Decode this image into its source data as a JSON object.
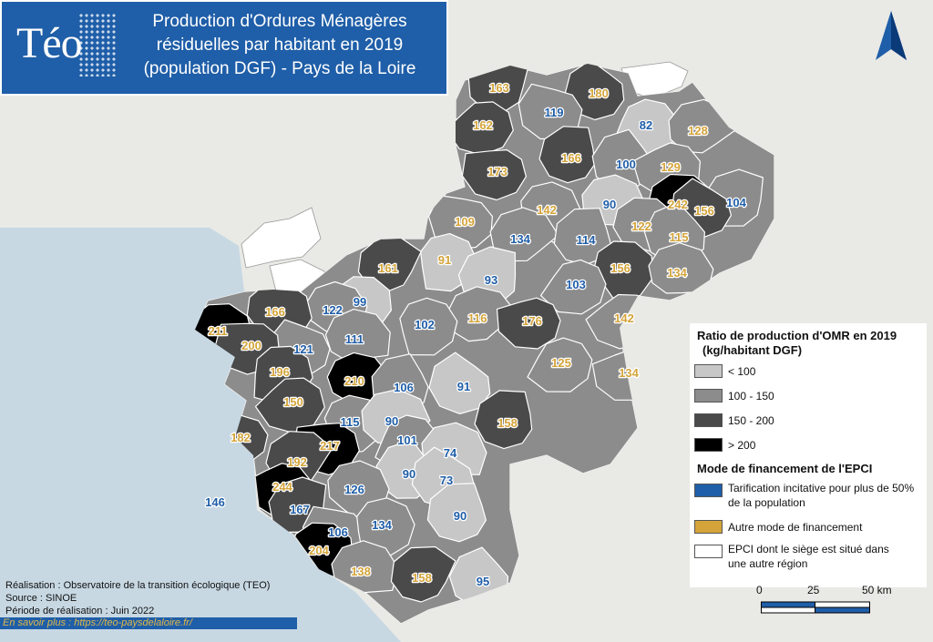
{
  "header": {
    "logo": "Téo",
    "title_lines": [
      "Production d'Ordures Ménagères",
      "résiduelles par habitant en 2019",
      "(population DGF) - Pays de la Loire"
    ]
  },
  "colors": {
    "lt100": "#c7c7c7",
    "r100_150": "#8c8c8c",
    "r150_200": "#4a4a4a",
    "gt200": "#000000",
    "incitative": "#1f5ea8",
    "autre": "#d4a43a",
    "other_region": "#ffffff",
    "sea": "#c7d8e3",
    "land": "#e9e9e6"
  },
  "legend": {
    "title": "Ratio de production d'OMR en 2019",
    "subtitle": "(kg/habitant DGF)",
    "classes": [
      "< 100",
      "100 - 150",
      "150 - 200",
      "> 200"
    ],
    "finance_title": "Mode de financement de l'EPCI",
    "finance_items": [
      "Tarification incitative pour plus de 50% de la population",
      "Autre mode de financement",
      "EPCI dont le siège est situé dans une autre région"
    ]
  },
  "scale": {
    "labels": [
      "0",
      "25",
      "50 km"
    ]
  },
  "credits": {
    "line1": "Réalisation : Observatoire de la transition écologique (TEO)",
    "line2": "Source : SINOE",
    "line3": "Période de réalisation : Juin 2022",
    "link": "En savoir plus : https://teo-paysdelaloire.fr/"
  },
  "epci": [
    {
      "v": "163",
      "m": "autre"
    },
    {
      "v": "180",
      "m": "autre"
    },
    {
      "v": "119",
      "m": "incitative"
    },
    {
      "v": "162",
      "m": "autre"
    },
    {
      "v": "82",
      "m": "incitative"
    },
    {
      "v": "128",
      "m": "autre"
    },
    {
      "v": "166",
      "m": "autre"
    },
    {
      "v": "100",
      "m": "incitative"
    },
    {
      "v": "173",
      "m": "autre"
    },
    {
      "v": "129",
      "m": "autre"
    },
    {
      "v": "90",
      "m": "incitative"
    },
    {
      "v": "242",
      "m": "autre"
    },
    {
      "v": "104",
      "m": "incitative"
    },
    {
      "v": "156",
      "m": "autre"
    },
    {
      "v": "109",
      "m": "autre"
    },
    {
      "v": "142",
      "m": "autre"
    },
    {
      "v": "122",
      "m": "autre"
    },
    {
      "v": "134",
      "m": "incitative"
    },
    {
      "v": "114",
      "m": "incitative"
    },
    {
      "v": "115",
      "m": "autre"
    },
    {
      "v": "91",
      "m": "autre"
    },
    {
      "v": "156",
      "m": "autre"
    },
    {
      "v": "134",
      "m": "autre"
    },
    {
      "v": "161",
      "m": "autre"
    },
    {
      "v": "93",
      "m": "incitative"
    },
    {
      "v": "103",
      "m": "incitative"
    },
    {
      "v": "99",
      "m": "incitative"
    },
    {
      "v": "122",
      "m": "incitative"
    },
    {
      "v": "166",
      "m": "autre"
    },
    {
      "v": "116",
      "m": "autre"
    },
    {
      "v": "176",
      "m": "autre"
    },
    {
      "v": "142",
      "m": "autre"
    },
    {
      "v": "102",
      "m": "incitative"
    },
    {
      "v": "211",
      "m": "autre"
    },
    {
      "v": "111",
      "m": "incitative"
    },
    {
      "v": "121",
      "m": "incitative"
    },
    {
      "v": "200",
      "m": "autre"
    },
    {
      "v": "125",
      "m": "autre"
    },
    {
      "v": "196",
      "m": "autre"
    },
    {
      "v": "210",
      "m": "autre"
    },
    {
      "v": "106",
      "m": "incitative"
    },
    {
      "v": "91",
      "m": "incitative"
    },
    {
      "v": "134",
      "m": "autre"
    },
    {
      "v": "150",
      "m": "autre"
    },
    {
      "v": "115",
      "m": "incitative"
    },
    {
      "v": "90",
      "m": "incitative"
    },
    {
      "v": "158",
      "m": "autre"
    },
    {
      "v": "182",
      "m": "autre"
    },
    {
      "v": "217",
      "m": "autre"
    },
    {
      "v": "101",
      "m": "incitative"
    },
    {
      "v": "74",
      "m": "incitative"
    },
    {
      "v": "192",
      "m": "autre"
    },
    {
      "v": "90",
      "m": "incitative"
    },
    {
      "v": "73",
      "m": "incitative"
    },
    {
      "v": "244",
      "m": "autre"
    },
    {
      "v": "126",
      "m": "incitative"
    },
    {
      "v": "146",
      "m": "incitative"
    },
    {
      "v": "167",
      "m": "incitative"
    },
    {
      "v": "90",
      "m": "incitative"
    },
    {
      "v": "106",
      "m": "incitative"
    },
    {
      "v": "134",
      "m": "incitative"
    },
    {
      "v": "204",
      "m": "autre"
    },
    {
      "v": "138",
      "m": "autre"
    },
    {
      "v": "158",
      "m": "autre"
    },
    {
      "v": "95",
      "m": "incitative"
    }
  ]
}
